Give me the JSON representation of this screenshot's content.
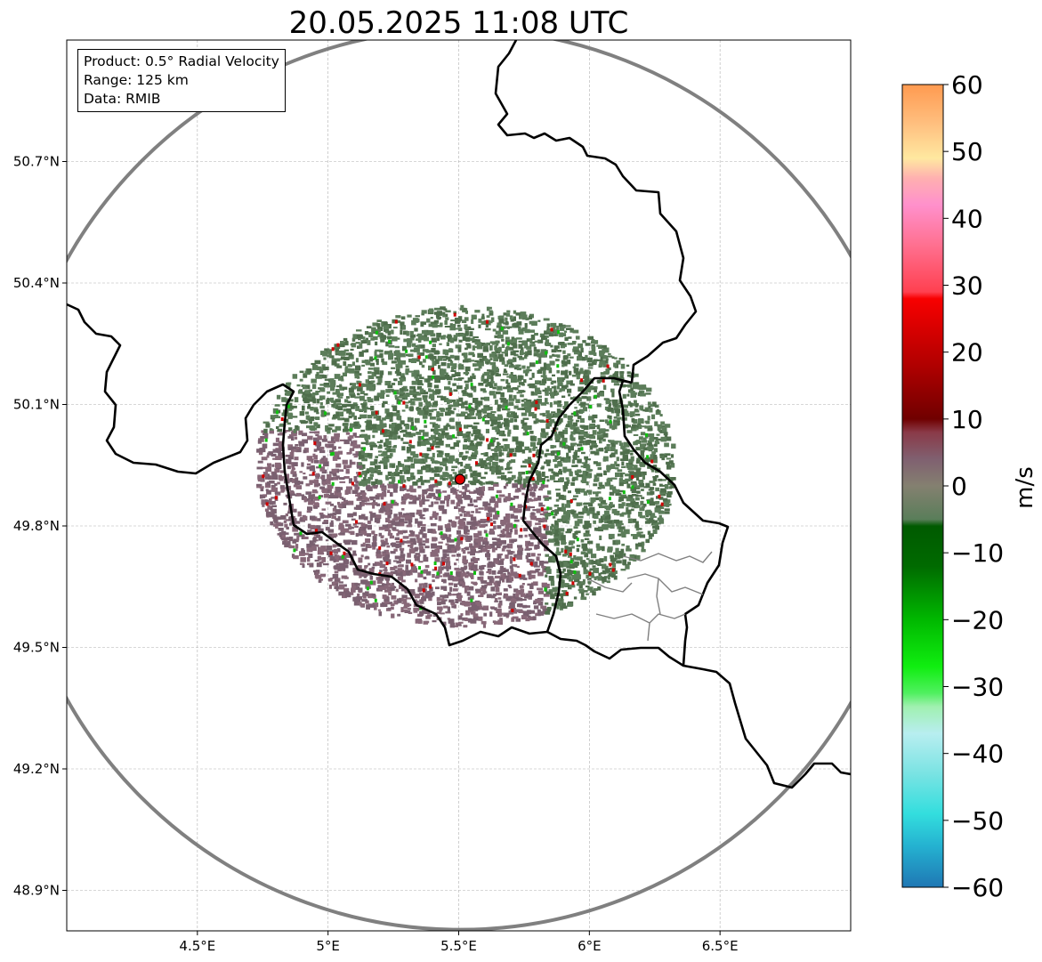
{
  "title": "20.05.2025 11:08 UTC",
  "infobox": {
    "product": "Product: 0.5° Radial Velocity",
    "range": "Range: 125 km",
    "data": "Data: RMIB"
  },
  "map": {
    "lon_range": [
      4.0,
      7.0
    ],
    "lat_range": [
      48.8,
      51.0
    ],
    "x_ticks": [
      {
        "value": 4.5,
        "label": "4.5°E"
      },
      {
        "value": 5.0,
        "label": "5°E"
      },
      {
        "value": 5.5,
        "label": "5.5°E"
      },
      {
        "value": 6.0,
        "label": "6°E"
      },
      {
        "value": 6.5,
        "label": "6.5°E"
      }
    ],
    "y_ticks": [
      {
        "value": 48.9,
        "label": "48.9°N"
      },
      {
        "value": 49.2,
        "label": "49.2°N"
      },
      {
        "value": 49.5,
        "label": "49.5°N"
      },
      {
        "value": 49.8,
        "label": "49.8°N"
      },
      {
        "value": 50.1,
        "label": "50.1°N"
      },
      {
        "value": 50.4,
        "label": "50.4°N"
      },
      {
        "value": 50.7,
        "label": "50.7°N"
      }
    ],
    "grid": true,
    "radar_site": {
      "lon": 5.505,
      "lat": 49.915
    },
    "range_ring_color": "#808080",
    "site_marker_color": "#e00000",
    "border_color": "#000000",
    "minor_border_color": "#808080"
  },
  "colorbar": {
    "label": "m/s",
    "min": -60,
    "max": 60,
    "ticks": [
      {
        "value": 60,
        "label": "60"
      },
      {
        "value": 50,
        "label": "50"
      },
      {
        "value": 40,
        "label": "40"
      },
      {
        "value": 30,
        "label": "30"
      },
      {
        "value": 20,
        "label": "20"
      },
      {
        "value": 10,
        "label": "10"
      },
      {
        "value": 0,
        "label": "0"
      },
      {
        "value": -10,
        "label": "−10"
      },
      {
        "value": -20,
        "label": "−20"
      },
      {
        "value": -30,
        "label": "−30"
      },
      {
        "value": -40,
        "label": "−40"
      },
      {
        "value": -50,
        "label": "−50"
      },
      {
        "value": -60,
        "label": "−60"
      }
    ],
    "stops": [
      {
        "v": -60,
        "c": "#1f77b4"
      },
      {
        "v": -54,
        "c": "#24b0d0"
      },
      {
        "v": -49,
        "c": "#33dede"
      },
      {
        "v": -43,
        "c": "#7ae3e3"
      },
      {
        "v": -37,
        "c": "#b8eef0"
      },
      {
        "v": -33,
        "c": "#a0f0b0"
      },
      {
        "v": -31,
        "c": "#50f060"
      },
      {
        "v": -27,
        "c": "#10ee10"
      },
      {
        "v": -20,
        "c": "#00b800"
      },
      {
        "v": -12,
        "c": "#006a00"
      },
      {
        "v": -6,
        "c": "#005a00"
      },
      {
        "v": -5,
        "c": "#5a7e5a"
      },
      {
        "v": 0,
        "c": "#848070"
      },
      {
        "v": 4,
        "c": "#806070"
      },
      {
        "v": 8,
        "c": "#8a3a48"
      },
      {
        "v": 10,
        "c": "#700000"
      },
      {
        "v": 18,
        "c": "#b00000"
      },
      {
        "v": 28,
        "c": "#f80000"
      },
      {
        "v": 29,
        "c": "#ff4050"
      },
      {
        "v": 36,
        "c": "#ff7090"
      },
      {
        "v": 42,
        "c": "#ff90cc"
      },
      {
        "v": 46,
        "c": "#ffb0b0"
      },
      {
        "v": 49,
        "c": "#ffe8a0"
      },
      {
        "v": 54,
        "c": "#ffc080"
      },
      {
        "v": 60,
        "c": "#ff9a50"
      }
    ]
  },
  "velocity_echo": {
    "center_lon": 5.52,
    "center_lat": 49.95,
    "main_color": "#5c7d5a",
    "main_color_alt": "#4f6e4c",
    "south_color": "#7a6070",
    "south_color_alt": "#886878"
  }
}
